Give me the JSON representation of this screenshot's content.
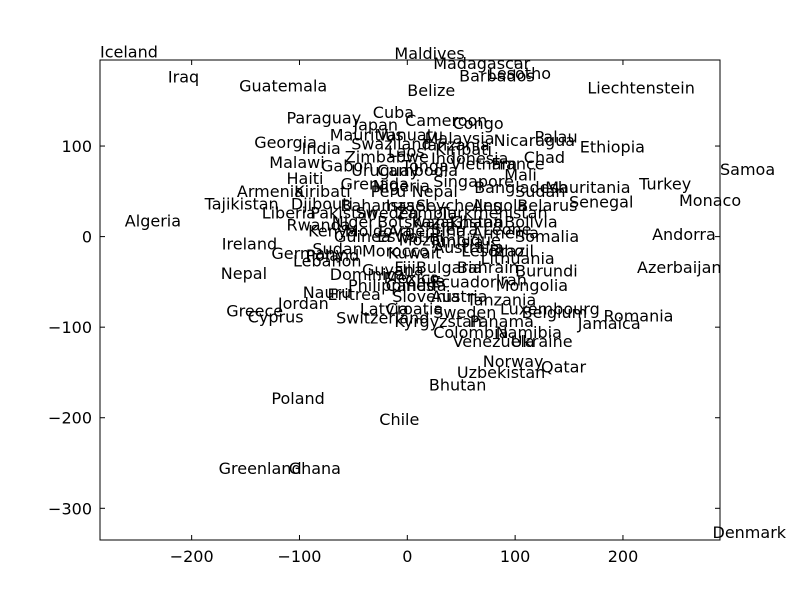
{
  "chart_data": {
    "type": "scatter",
    "title": "",
    "xlabel": "",
    "ylabel": "",
    "xlim": [
      -285,
      290
    ],
    "ylim": [
      -335,
      195
    ],
    "xticks": [
      -200,
      -100,
      0,
      100,
      200
    ],
    "yticks": [
      -300,
      -200,
      -100,
      0,
      100
    ],
    "xtick_labels": [
      "−200",
      "−100",
      "0",
      "100",
      "200"
    ],
    "ytick_labels": [
      "−300",
      "−200",
      "−100",
      "0",
      "100"
    ],
    "grid": false,
    "legend": false,
    "points": [
      {
        "label": "Iceland",
        "x": -285,
        "y": 198
      },
      {
        "label": "Maldives",
        "x": -12,
        "y": 196
      },
      {
        "label": "Madagascar",
        "x": 24,
        "y": 185
      },
      {
        "label": "Lesotho",
        "x": 75,
        "y": 174
      },
      {
        "label": "Barbados",
        "x": 48,
        "y": 171
      },
      {
        "label": "Iraq",
        "x": -222,
        "y": 170
      },
      {
        "label": "Guatemala",
        "x": -156,
        "y": 160
      },
      {
        "label": "Liechtenstein",
        "x": 167,
        "y": 158
      },
      {
        "label": "Belize",
        "x": 0,
        "y": 155
      },
      {
        "label": "Cuba",
        "x": -32,
        "y": 131
      },
      {
        "label": "Paraguay",
        "x": -112,
        "y": 125
      },
      {
        "label": "Cameroon",
        "x": -2,
        "y": 122
      },
      {
        "label": "Japan",
        "x": -50,
        "y": 117
      },
      {
        "label": "Congo",
        "x": 42,
        "y": 119
      },
      {
        "label": "Mauritius",
        "x": -72,
        "y": 106
      },
      {
        "label": "Vanuatu",
        "x": -28,
        "y": 106
      },
      {
        "label": "Malaysia",
        "x": 16,
        "y": 102
      },
      {
        "label": "Nicaragua",
        "x": 80,
        "y": 100
      },
      {
        "label": "Palau",
        "x": 118,
        "y": 104
      },
      {
        "label": "Georgia",
        "x": -142,
        "y": 98
      },
      {
        "label": "Swaziland",
        "x": -52,
        "y": 96
      },
      {
        "label": "Tanzania",
        "x": 12,
        "y": 95
      },
      {
        "label": "Ethiopia",
        "x": 160,
        "y": 93
      },
      {
        "label": "India",
        "x": -98,
        "y": 91
      },
      {
        "label": "Laos",
        "x": -18,
        "y": 88
      },
      {
        "label": "Kiribati",
        "x": 26,
        "y": 90
      },
      {
        "label": "Zimbabwe",
        "x": -58,
        "y": 82
      },
      {
        "label": "Indonesia",
        "x": 22,
        "y": 80
      },
      {
        "label": "Chad",
        "x": 108,
        "y": 81
      },
      {
        "label": "Malawi",
        "x": -128,
        "y": 76
      },
      {
        "label": "Gabon",
        "x": -80,
        "y": 72
      },
      {
        "label": "Samoa",
        "x": 290,
        "y": 68
      },
      {
        "label": "Tonga",
        "x": -5,
        "y": 72
      },
      {
        "label": "Vietnam",
        "x": 40,
        "y": 74
      },
      {
        "label": "France",
        "x": 78,
        "y": 74
      },
      {
        "label": "Uruguay",
        "x": -52,
        "y": 67
      },
      {
        "label": "Cambodia",
        "x": -28,
        "y": 67
      },
      {
        "label": "Mali",
        "x": 90,
        "y": 62
      },
      {
        "label": "Haiti",
        "x": -112,
        "y": 58
      },
      {
        "label": "Grenada",
        "x": -62,
        "y": 52
      },
      {
        "label": "Nigeria",
        "x": -32,
        "y": 50
      },
      {
        "label": "Singapore",
        "x": 24,
        "y": 55
      },
      {
        "label": "Bangladesh",
        "x": 62,
        "y": 48
      },
      {
        "label": "Mauritania",
        "x": 128,
        "y": 48
      },
      {
        "label": "Turkey",
        "x": 215,
        "y": 52
      },
      {
        "label": "Armenia",
        "x": -158,
        "y": 44
      },
      {
        "label": "Kiribati",
        "x": -105,
        "y": 44
      },
      {
        "label": "Peru",
        "x": -34,
        "y": 44
      },
      {
        "label": "Nepal",
        "x": 4,
        "y": 44
      },
      {
        "label": "Sudan",
        "x": 100,
        "y": 44
      },
      {
        "label": "Tajikistan",
        "x": -188,
        "y": 30
      },
      {
        "label": "Djibouti",
        "x": -108,
        "y": 30
      },
      {
        "label": "Bahamas",
        "x": -62,
        "y": 28
      },
      {
        "label": "Israel",
        "x": -20,
        "y": 28
      },
      {
        "label": "Seychelles",
        "x": 8,
        "y": 28
      },
      {
        "label": "Angola",
        "x": 60,
        "y": 28
      },
      {
        "label": "Belarus",
        "x": 102,
        "y": 28
      },
      {
        "label": "Senegal",
        "x": 150,
        "y": 32
      },
      {
        "label": "Monaco",
        "x": 252,
        "y": 34
      },
      {
        "label": "Liberia",
        "x": -135,
        "y": 20
      },
      {
        "label": "Pakistan",
        "x": -90,
        "y": 20
      },
      {
        "label": "Sweden",
        "x": -48,
        "y": 20
      },
      {
        "label": "Zambia",
        "x": -10,
        "y": 20
      },
      {
        "label": "Turkmenistan",
        "x": 30,
        "y": 20
      },
      {
        "label": "Algeria",
        "x": -262,
        "y": 11
      },
      {
        "label": "Rwanda",
        "x": -112,
        "y": 7
      },
      {
        "label": "Niger",
        "x": -70,
        "y": 10
      },
      {
        "label": "Botswana",
        "x": -28,
        "y": 10
      },
      {
        "label": "Kazakhstan",
        "x": 4,
        "y": 10
      },
      {
        "label": "Ghana",
        "x": 40,
        "y": 10
      },
      {
        "label": "Bolivia",
        "x": 90,
        "y": 10
      },
      {
        "label": "Kenya",
        "x": -92,
        "y": 0
      },
      {
        "label": "Moldova",
        "x": -58,
        "y": 0
      },
      {
        "label": "Argentina",
        "x": -18,
        "y": 0
      },
      {
        "label": "Sierra Leone",
        "x": 22,
        "y": 2
      },
      {
        "label": "Armenia",
        "x": 60,
        "y": -2
      },
      {
        "label": "Somalia",
        "x": 100,
        "y": -6
      },
      {
        "label": "Andorra",
        "x": 227,
        "y": -4
      },
      {
        "label": "Guinea",
        "x": -68,
        "y": -6
      },
      {
        "label": "Eswatini",
        "x": -28,
        "y": -6
      },
      {
        "label": "Ireland",
        "x": -172,
        "y": -14
      },
      {
        "label": "Mozambique",
        "x": -8,
        "y": -10
      },
      {
        "label": "Tunisia",
        "x": 20,
        "y": -12
      },
      {
        "label": "Australia",
        "x": 24,
        "y": -18
      },
      {
        "label": "Lesotho",
        "x": 50,
        "y": -22
      },
      {
        "label": "Brazil",
        "x": 76,
        "y": -22
      },
      {
        "label": "Sudan",
        "x": -88,
        "y": -20
      },
      {
        "label": "Morocco",
        "x": -42,
        "y": -22
      },
      {
        "label": "Kuwait",
        "x": -18,
        "y": -24
      },
      {
        "label": "Lithuania",
        "x": 68,
        "y": -30
      },
      {
        "label": "Germany",
        "x": -126,
        "y": -25
      },
      {
        "label": "Poland",
        "x": -94,
        "y": -27
      },
      {
        "label": "Lebanon",
        "x": -106,
        "y": -33
      },
      {
        "label": "Azerbaijan",
        "x": 213,
        "y": -40
      },
      {
        "label": "Nepal",
        "x": -173,
        "y": -47
      },
      {
        "label": "Guyana",
        "x": -42,
        "y": -43
      },
      {
        "label": "Fiji",
        "x": -12,
        "y": -40
      },
      {
        "label": "Bulgaria",
        "x": 8,
        "y": -40
      },
      {
        "label": "Bahrain",
        "x": 46,
        "y": -40
      },
      {
        "label": "Burundi",
        "x": 100,
        "y": -44
      },
      {
        "label": "Dominica",
        "x": -72,
        "y": -48
      },
      {
        "label": "Mexico",
        "x": -22,
        "y": -52
      },
      {
        "label": "Ecuador",
        "x": 22,
        "y": -56
      },
      {
        "label": "Chile",
        "x": -2,
        "y": -55
      },
      {
        "label": "Iran",
        "x": 82,
        "y": -54
      },
      {
        "label": "Mongolia",
        "x": 82,
        "y": -60
      },
      {
        "label": "Philippines",
        "x": -55,
        "y": -60
      },
      {
        "label": "Canada",
        "x": -20,
        "y": -60
      },
      {
        "label": "Nauru",
        "x": -97,
        "y": -68
      },
      {
        "label": "Eritrea",
        "x": -74,
        "y": -70
      },
      {
        "label": "Slovenia",
        "x": -14,
        "y": -72
      },
      {
        "label": "Austria",
        "x": 22,
        "y": -72
      },
      {
        "label": "Tanzania",
        "x": 55,
        "y": -76
      },
      {
        "label": "Jordan",
        "x": -120,
        "y": -80
      },
      {
        "label": "Luxembourg",
        "x": 86,
        "y": -86
      },
      {
        "label": "Latvia",
        "x": -44,
        "y": -86
      },
      {
        "label": "Croatia",
        "x": -20,
        "y": -86
      },
      {
        "label": "Sweden",
        "x": 24,
        "y": -90
      },
      {
        "label": "Belgium",
        "x": 106,
        "y": -90
      },
      {
        "label": "Romania",
        "x": 182,
        "y": -94
      },
      {
        "label": "Greece",
        "x": -168,
        "y": -88
      },
      {
        "label": "Cyprus",
        "x": -148,
        "y": -95
      },
      {
        "label": "Switzerland",
        "x": -66,
        "y": -96
      },
      {
        "label": "Kyrgyzstan",
        "x": -12,
        "y": -100
      },
      {
        "label": "Panama",
        "x": 58,
        "y": -100
      },
      {
        "label": "Jamaica",
        "x": 158,
        "y": -102
      },
      {
        "label": "Colombia",
        "x": 24,
        "y": -112
      },
      {
        "label": "Namibia",
        "x": 82,
        "y": -112
      },
      {
        "label": "Venezuela",
        "x": 42,
        "y": -122
      },
      {
        "label": "Ukraine",
        "x": 96,
        "y": -122
      },
      {
        "label": "Norway",
        "x": 70,
        "y": -144
      },
      {
        "label": "Qatar",
        "x": 124,
        "y": -150
      },
      {
        "label": "Uzbekistan",
        "x": 46,
        "y": -156
      },
      {
        "label": "Bhutan",
        "x": 20,
        "y": -170
      },
      {
        "label": "Poland",
        "x": -126,
        "y": -185
      },
      {
        "label": "Chile",
        "x": -26,
        "y": -208
      },
      {
        "label": "Greenland",
        "x": -175,
        "y": -262
      },
      {
        "label": "Ghana",
        "x": -110,
        "y": -262
      },
      {
        "label": "Denmark",
        "x": 283,
        "y": -333
      }
    ]
  }
}
